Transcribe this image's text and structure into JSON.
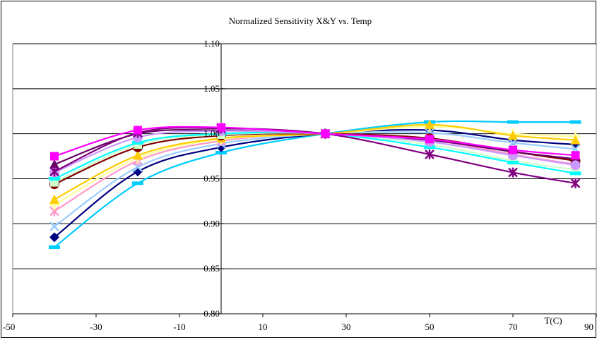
{
  "chart_data": {
    "type": "line",
    "title": "Normalized Sensitivity X&Y vs. Temp",
    "xlabel": "T(C)",
    "ylabel": "",
    "xlim": [
      -50,
      90
    ],
    "ylim": [
      0.8,
      1.1
    ],
    "x_ticks": [
      -50,
      -30,
      -10,
      10,
      30,
      50,
      70,
      90
    ],
    "x_tick_labels": [
      "-50",
      "-30",
      "-10",
      "10",
      "30",
      "50",
      "70",
      "90"
    ],
    "y_ticks": [
      0.8,
      0.85,
      0.9,
      0.95,
      1.0,
      1.05,
      1.1
    ],
    "y_tick_labels": [
      "0.80",
      "0.85",
      "0.90",
      "0.95",
      "1.00",
      "1.05",
      "1.10"
    ],
    "grid": {
      "horizontal": true,
      "vertical": false
    },
    "legend": "none",
    "x": [
      -40,
      -20,
      0,
      25,
      50,
      70,
      85
    ],
    "series": [
      {
        "color": "#00CCFF",
        "marker": "dash",
        "values": [
          0.874,
          0.945,
          0.979,
          1.0,
          1.013,
          1.013,
          1.013
        ]
      },
      {
        "color": "#000080",
        "marker": "diamond",
        "values": [
          0.885,
          0.958,
          0.985,
          1.0,
          1.004,
          0.993,
          0.988
        ]
      },
      {
        "color": "#99CCFF",
        "marker": "x",
        "values": [
          0.897,
          0.963,
          0.989,
          1.0,
          1.001,
          0.99,
          0.983
        ]
      },
      {
        "color": "#FF99CC",
        "marker": "asterisk",
        "values": [
          0.914,
          0.97,
          0.992,
          1.0,
          0.993,
          0.977,
          0.966
        ]
      },
      {
        "color": "#FFFF99",
        "marker": "plus",
        "values": [
          0.921,
          0.973,
          0.994,
          1.0,
          1.008,
          1.0,
          0.997
        ]
      },
      {
        "color": "#FFCC00",
        "marker": "triangle",
        "values": [
          0.927,
          0.976,
          0.995,
          1.0,
          1.01,
          0.998,
          0.993
        ]
      },
      {
        "color": "#800000",
        "marker": "circle",
        "values": [
          0.944,
          0.985,
          0.998,
          1.0,
          0.995,
          0.98,
          0.97
        ]
      },
      {
        "color": "#CCFFCC",
        "marker": "square",
        "values": [
          0.946,
          0.988,
          0.999,
          1.0,
          0.988,
          0.97,
          0.96
        ]
      },
      {
        "color": "#00FFFF",
        "marker": "dash",
        "values": [
          0.95,
          0.99,
          1.0,
          1.0,
          0.985,
          0.968,
          0.956
        ]
      },
      {
        "color": "#660066",
        "marker": "triangle",
        "values": [
          0.966,
          1.0,
          1.004,
          1.0,
          0.993,
          0.98,
          0.972
        ]
      },
      {
        "color": "#CC99FF",
        "marker": "circle",
        "values": [
          0.957,
          0.996,
          1.003,
          1.0,
          0.991,
          0.976,
          0.965
        ]
      },
      {
        "color": "#800080",
        "marker": "asterisk",
        "values": [
          0.958,
          1.001,
          1.006,
          1.0,
          0.977,
          0.957,
          0.945
        ]
      },
      {
        "color": "#FF00FF",
        "marker": "square",
        "values": [
          0.975,
          1.004,
          1.007,
          1.0,
          0.994,
          0.982,
          0.976
        ]
      }
    ]
  }
}
